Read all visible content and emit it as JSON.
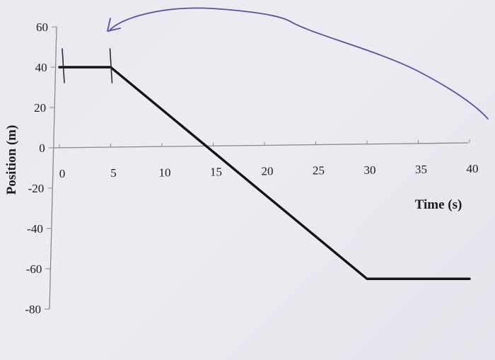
{
  "chart_data": {
    "type": "line",
    "xlabel": "Time (s)",
    "ylabel": "Position (m)",
    "xlim": [
      0,
      40
    ],
    "ylim": [
      -80,
      60
    ],
    "x_ticks": [
      0,
      5,
      10,
      15,
      20,
      25,
      30,
      35,
      40
    ],
    "y_ticks": [
      60,
      40,
      20,
      0,
      -20,
      -40,
      -60,
      -80
    ],
    "grid": false,
    "series": [
      {
        "x": [
          0,
          5,
          30,
          40
        ],
        "y": [
          40,
          40,
          -65,
          -65
        ],
        "color": "#141414"
      }
    ],
    "annotations": [
      {
        "kind": "hand-drawn tick mark",
        "x": 0
      },
      {
        "kind": "hand-drawn tick mark",
        "x": 5
      },
      {
        "kind": "hand-drawn arrow",
        "color": "#5a4fa8"
      }
    ]
  }
}
